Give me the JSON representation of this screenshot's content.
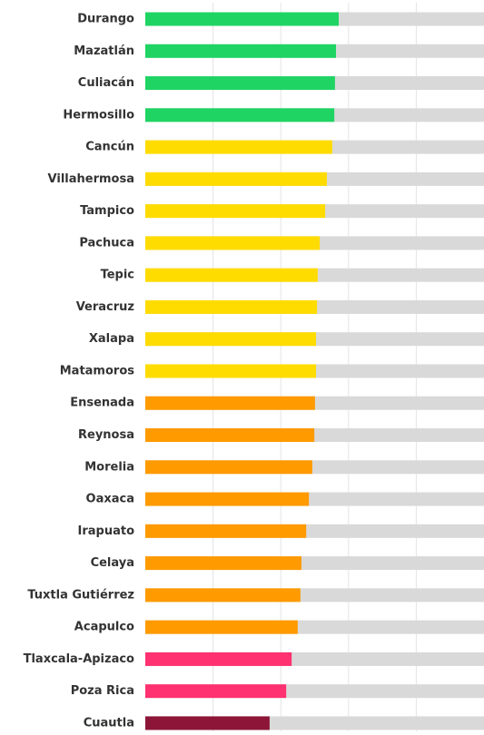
{
  "chart_data": {
    "type": "bar",
    "orientation": "horizontal",
    "categories": [
      "Durango",
      "Mazatlán",
      "Culiacán",
      "Hermosillo",
      "Cancún",
      "Villahermosa",
      "Tampico",
      "Pachuca",
      "Tepic",
      "Veracruz",
      "Xalapa",
      "Matamoros",
      "Ensenada",
      "Reynosa",
      "Morelia",
      "Oaxaca",
      "Irapuato",
      "Celaya",
      "Tuxtla Gutiérrez",
      "Acapulco",
      "Tlaxcala-Apizaco",
      "Poza Rica",
      "Cuautla"
    ],
    "values": [
      57.1,
      56.3,
      56.0,
      55.8,
      55.2,
      53.6,
      53.1,
      51.5,
      50.9,
      50.7,
      50.4,
      50.4,
      50.1,
      49.9,
      49.3,
      48.3,
      47.5,
      46.1,
      45.8,
      45.0,
      43.2,
      41.6,
      36.7
    ],
    "colors": [
      "#1fd463",
      "#1fd463",
      "#1fd463",
      "#1fd463",
      "#ffdc00",
      "#ffdc00",
      "#ffdc00",
      "#ffdc00",
      "#ffdc00",
      "#ffdc00",
      "#ffdc00",
      "#ffdc00",
      "#ff9a00",
      "#ff9a00",
      "#ff9a00",
      "#ff9a00",
      "#ff9a00",
      "#ff9a00",
      "#ff9a00",
      "#ff9a00",
      "#ff3170",
      "#ff3170",
      "#8c1538"
    ],
    "track_color": "#d9d9d9",
    "xlim": [
      0,
      100
    ],
    "xticks": [
      20,
      40,
      60,
      80
    ],
    "grid": true
  }
}
